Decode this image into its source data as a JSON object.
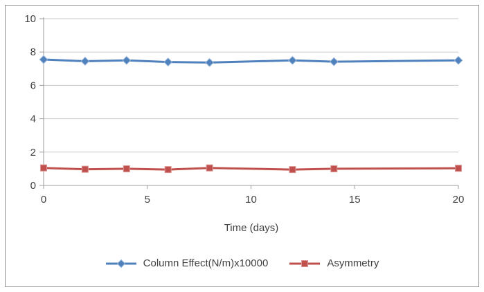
{
  "chart_data": {
    "type": "line",
    "title": "",
    "xlabel": "Time (days)",
    "ylabel": "",
    "x": [
      0,
      2,
      4,
      6,
      8,
      12,
      14,
      20
    ],
    "series": [
      {
        "name": "Column Effect(N/m)x10000",
        "color": "#4F81BD",
        "marker_edge": "#95B3D7",
        "marker": "diamond",
        "values": [
          7.55,
          7.45,
          7.5,
          7.4,
          7.37,
          7.5,
          7.42,
          7.5
        ]
      },
      {
        "name": "Asymmetry",
        "color": "#C0504D",
        "marker_edge": "#D99694",
        "marker": "square",
        "values": [
          1.05,
          0.97,
          1.0,
          0.95,
          1.05,
          0.95,
          1.0,
          1.03
        ]
      }
    ],
    "xticks": [
      0,
      5,
      10,
      15,
      20
    ],
    "yticks": [
      0,
      2,
      4,
      6,
      8,
      10
    ],
    "xlim": [
      0,
      20
    ],
    "ylim": [
      0,
      10
    ],
    "grid": "horizontal",
    "legend_position": "bottom",
    "colors": {
      "grid": "#C9C9C9",
      "axis": "#9C9C9C",
      "tick_text": "#3F3F3F",
      "frame_border": "#8E8E8E",
      "background": "#FFFFFF"
    }
  }
}
